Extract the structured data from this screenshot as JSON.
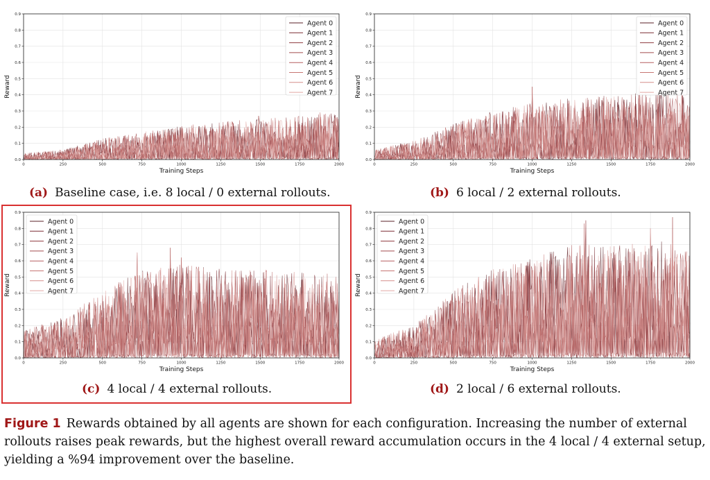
{
  "colors": {
    "agents": [
      "#5a1f24",
      "#7a2c32",
      "#8e3a3e",
      "#a24b4e",
      "#b55f60",
      "#c67573",
      "#d58d8a",
      "#e2a8a4"
    ],
    "accent": "#a01818",
    "highlight_border": "#d93030"
  },
  "chart_data": [
    {
      "type": "line",
      "id": "a",
      "caption_tag": "(a)",
      "caption_text": "Baseline case, i.e. 8 local / 0 external rollouts.",
      "xlabel": "Training Steps",
      "ylabel": "Reward",
      "xlim": [
        0,
        2000
      ],
      "ylim": [
        0,
        0.9
      ],
      "xticks": [
        0,
        250,
        500,
        750,
        1000,
        1250,
        1500,
        1750,
        2000
      ],
      "yticks": [
        0.0,
        0.1,
        0.2,
        0.3,
        0.4,
        0.5,
        0.6,
        0.7,
        0.8,
        0.9
      ],
      "grid": true,
      "legend_position": "top-right",
      "series_names": [
        "Agent 0",
        "Agent 1",
        "Agent 2",
        "Agent 3",
        "Agent 4",
        "Agent 5",
        "Agent 6",
        "Agent 7"
      ],
      "envelope": {
        "x": [
          0,
          250,
          500,
          750,
          1000,
          1250,
          1500,
          1750,
          2000
        ],
        "y": [
          0.04,
          0.06,
          0.13,
          0.17,
          0.21,
          0.24,
          0.25,
          0.27,
          0.29
        ]
      },
      "peaks": [
        {
          "x": 1490,
          "y": 0.27
        },
        {
          "x": 1880,
          "y": 0.29
        },
        {
          "x": 1720,
          "y": 0.26
        }
      ]
    },
    {
      "type": "line",
      "id": "b",
      "caption_tag": "(b)",
      "caption_text": "6 local / 2 external rollouts.",
      "xlabel": "Training Steps",
      "ylabel": "Reward",
      "xlim": [
        0,
        2000
      ],
      "ylim": [
        0,
        0.9
      ],
      "xticks": [
        0,
        250,
        500,
        750,
        1000,
        1250,
        1500,
        1750,
        2000
      ],
      "yticks": [
        0.0,
        0.1,
        0.2,
        0.3,
        0.4,
        0.5,
        0.6,
        0.7,
        0.8,
        0.9
      ],
      "grid": true,
      "legend_position": "top-right",
      "series_names": [
        "Agent 0",
        "Agent 1",
        "Agent 2",
        "Agent 3",
        "Agent 4",
        "Agent 5",
        "Agent 6",
        "Agent 7"
      ],
      "envelope": {
        "x": [
          0,
          250,
          500,
          750,
          1000,
          1250,
          1500,
          1750,
          2000
        ],
        "y": [
          0.06,
          0.12,
          0.22,
          0.3,
          0.35,
          0.38,
          0.4,
          0.42,
          0.43
        ]
      },
      "peaks": [
        {
          "x": 1000,
          "y": 0.45
        },
        {
          "x": 1680,
          "y": 0.46
        },
        {
          "x": 1950,
          "y": 0.44
        }
      ]
    },
    {
      "type": "line",
      "id": "c",
      "caption_tag": "(c)",
      "caption_text": "4 local / 4 external rollouts.",
      "xlabel": "Training Steps",
      "ylabel": "Reward",
      "xlim": [
        0,
        2000
      ],
      "ylim": [
        0,
        0.9
      ],
      "xticks": [
        0,
        250,
        500,
        750,
        1000,
        1250,
        1500,
        1750,
        2000
      ],
      "yticks": [
        0.0,
        0.1,
        0.2,
        0.3,
        0.4,
        0.5,
        0.6,
        0.7,
        0.8,
        0.9
      ],
      "grid": true,
      "legend_position": "top-left",
      "series_names": [
        "Agent 0",
        "Agent 1",
        "Agent 2",
        "Agent 3",
        "Agent 4",
        "Agent 5",
        "Agent 6",
        "Agent 7"
      ],
      "envelope": {
        "x": [
          0,
          250,
          500,
          750,
          1000,
          1250,
          1500,
          1750,
          2000
        ],
        "y": [
          0.17,
          0.25,
          0.42,
          0.55,
          0.58,
          0.55,
          0.55,
          0.53,
          0.52
        ]
      },
      "peaks": [
        {
          "x": 930,
          "y": 0.68
        },
        {
          "x": 720,
          "y": 0.65
        },
        {
          "x": 1000,
          "y": 0.62
        }
      ]
    },
    {
      "type": "line",
      "id": "d",
      "caption_tag": "(d)",
      "caption_text": "2 local / 6 external rollouts.",
      "xlabel": "Training Steps",
      "ylabel": "Reward",
      "xlim": [
        0,
        2000
      ],
      "ylim": [
        0,
        0.9
      ],
      "xticks": [
        0,
        250,
        500,
        750,
        1000,
        1250,
        1500,
        1750,
        2000
      ],
      "yticks": [
        0.0,
        0.1,
        0.2,
        0.3,
        0.4,
        0.5,
        0.6,
        0.7,
        0.8,
        0.9
      ],
      "grid": true,
      "legend_position": "top-left",
      "series_names": [
        "Agent 0",
        "Agent 1",
        "Agent 2",
        "Agent 3",
        "Agent 4",
        "Agent 5",
        "Agent 6",
        "Agent 7"
      ],
      "envelope": {
        "x": [
          0,
          250,
          500,
          750,
          1000,
          1250,
          1500,
          1750,
          2000
        ],
        "y": [
          0.12,
          0.2,
          0.42,
          0.55,
          0.62,
          0.7,
          0.7,
          0.72,
          0.72
        ]
      },
      "peaks": [
        {
          "x": 1340,
          "y": 0.85
        },
        {
          "x": 1890,
          "y": 0.87
        },
        {
          "x": 1330,
          "y": 0.83
        },
        {
          "x": 1750,
          "y": 0.8
        }
      ]
    }
  ],
  "figure_caption": {
    "label": "Figure 1",
    "text": "Rewards obtained by all agents are shown for each configuration. Increasing the number of external rollouts raises peak rewards, but the highest overall reward accumulation occurs in the 4 local / 4 external setup, yielding a %94 improvement over the baseline."
  }
}
